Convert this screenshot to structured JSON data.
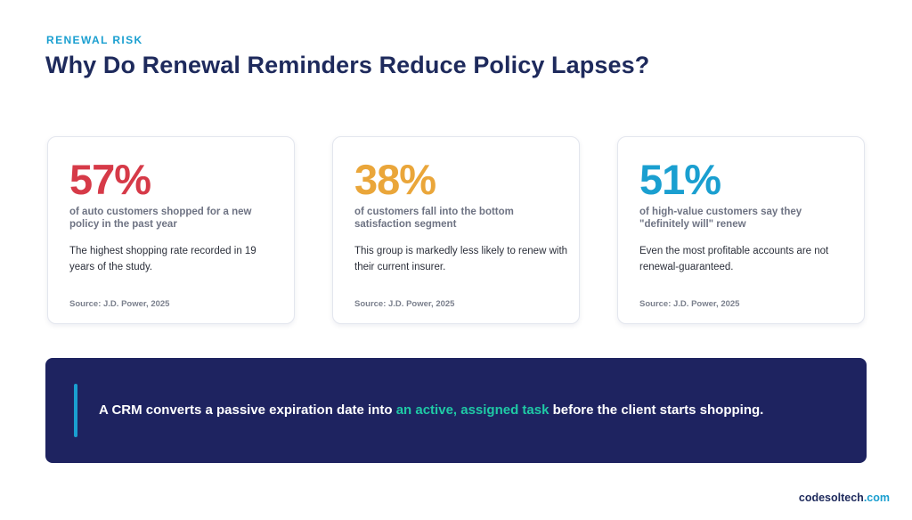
{
  "header": {
    "eyebrow": "RENEWAL RISK",
    "title": "Why Do Renewal Reminders Reduce Policy Lapses?"
  },
  "cards": [
    {
      "stat": "57%",
      "stat_color": "#d63a48",
      "description": "of auto customers shopped for a new policy in the past year",
      "body": "The highest shopping rate recorded in 19 years of the study.",
      "source": "Source: J.D. Power, 2025"
    },
    {
      "stat": "38%",
      "stat_color": "#eaa63a",
      "description": "of customers fall into the bottom satisfaction segment",
      "body": "This group is markedly less likely to renew with their current insurer.",
      "source": "Source: J.D. Power, 2025"
    },
    {
      "stat": "51%",
      "stat_color": "#1a9fd0",
      "description": "of high-value customers say they \"definitely will\" renew",
      "body": "Even the most profitable accounts are not renewal-guaranteed.",
      "source": "Source: J.D. Power, 2025"
    }
  ],
  "banner": {
    "text_before": "A CRM converts a passive expiration date into ",
    "highlight": "an active, assigned task",
    "text_after": " before the client starts shopping.",
    "highlight_color": "#1fc9a5",
    "background_color": "#1e2360"
  },
  "footer": {
    "brand_name": "codesoltech",
    "brand_tld": ".com"
  }
}
